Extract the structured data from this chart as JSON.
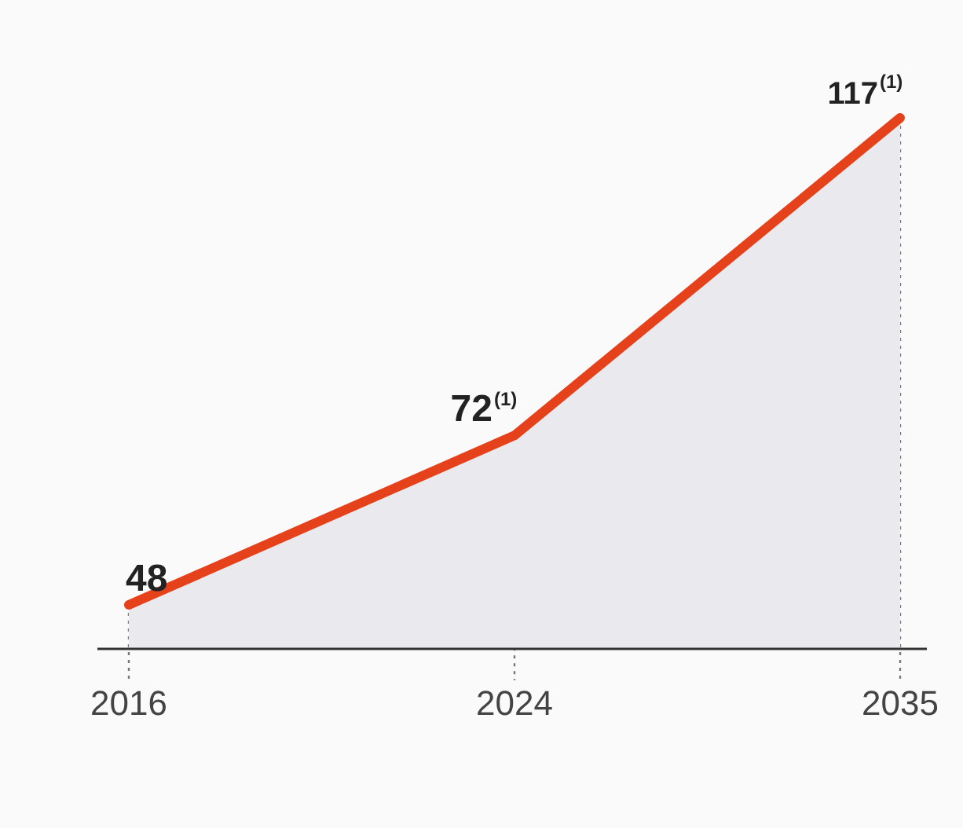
{
  "chart_data": {
    "type": "area",
    "categories": [
      "2016",
      "2024",
      "2035"
    ],
    "series": [
      {
        "color": "#e5421c",
        "values": [
          48,
          72,
          117
        ]
      }
    ],
    "data_labels": true,
    "annotations": [
      {
        "text": "(1)",
        "x": "2024",
        "y": 72
      },
      {
        "text": "(1)",
        "x": "2035",
        "y": 117
      }
    ],
    "marker": "none"
  }
}
